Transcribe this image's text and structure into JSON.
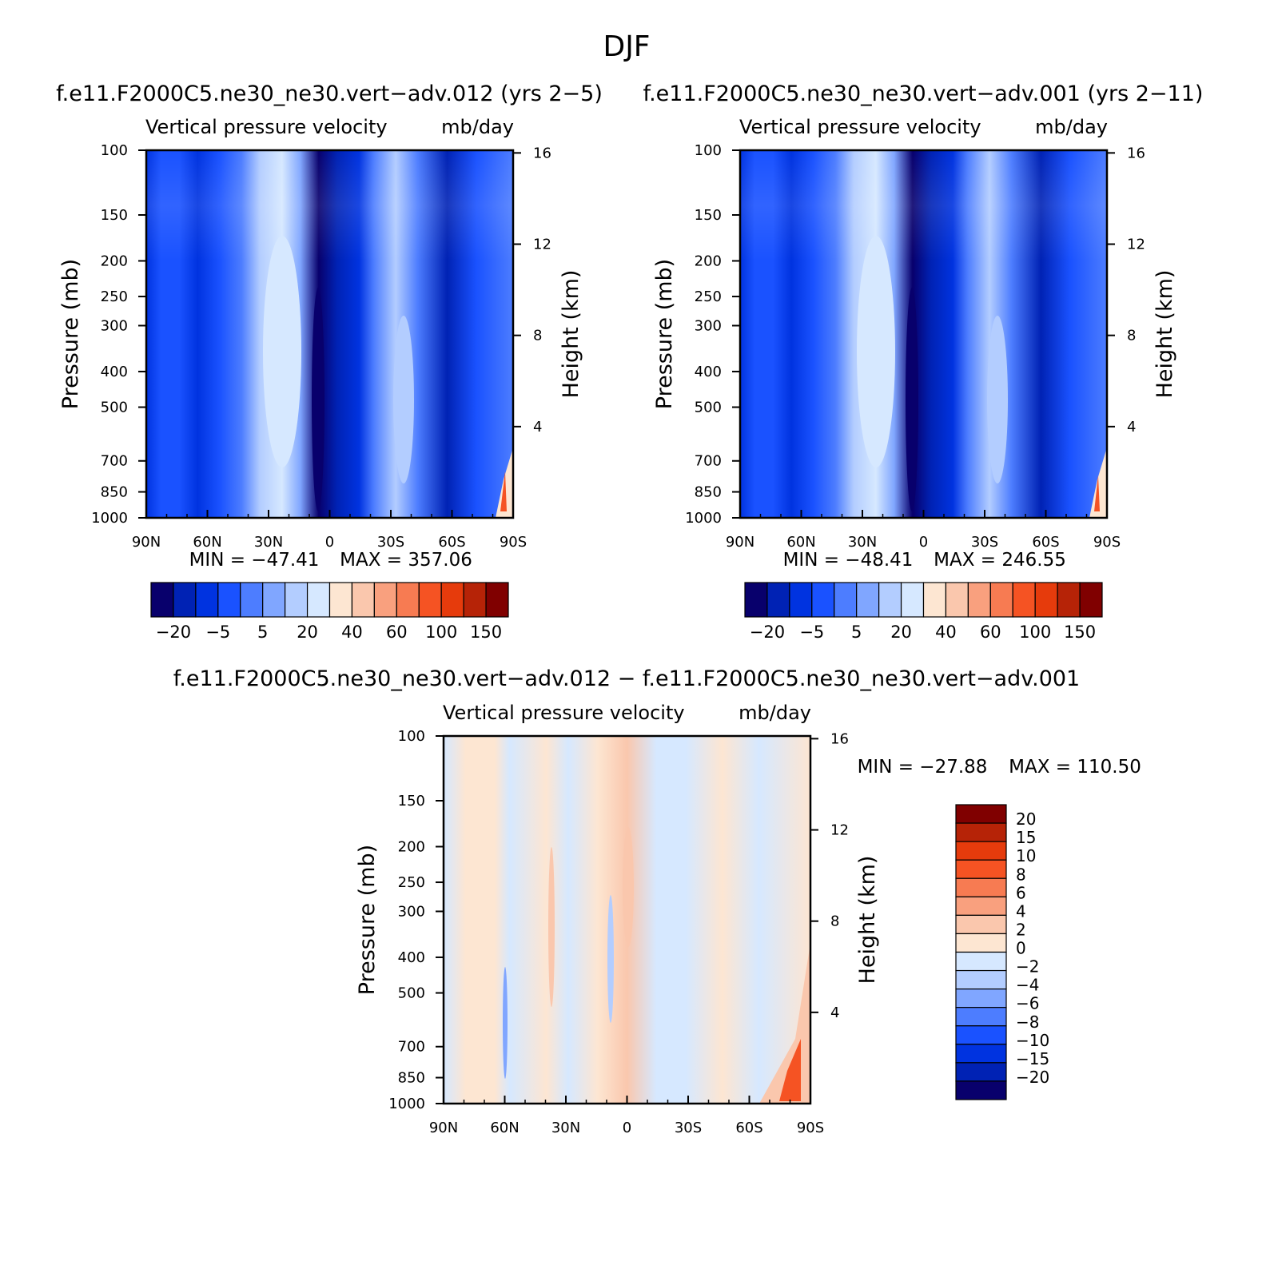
{
  "figure": {
    "title": "DJF",
    "subtitle_diff": "f.e11.F2000C5.ne30_ne30.vert−adv.012 − f.e11.F2000C5.ne30_ne30.vert−adv.001"
  },
  "chart_data": [
    {
      "type": "heatmap",
      "case": "f.e11.F2000C5.ne30_ne30.vert−adv.012 (yrs 2−5)",
      "title": "Vertical pressure velocity",
      "units": "mb/day",
      "xlabel": "",
      "ylabel": "Pressure (mb)",
      "ylabel_right": "Height (km)",
      "x_ticks": [
        "90N",
        "60N",
        "30N",
        "0",
        "30S",
        "60S",
        "90S"
      ],
      "y_ticks": [
        100,
        150,
        200,
        250,
        300,
        400,
        500,
        700,
        850,
        1000
      ],
      "height_ticks": [
        16,
        12,
        8,
        4
      ],
      "ylim": [
        1000,
        100
      ],
      "min_text": "MIN = −47.41",
      "max_text": "MAX = 357.06",
      "colorbar_levels": [
        -20,
        -10,
        -5,
        0,
        5,
        10,
        20,
        30,
        40,
        50,
        60,
        80,
        100,
        120,
        150
      ],
      "colorbar_labels": [
        "−20",
        "−5",
        "5",
        "20",
        "40",
        "60",
        "100",
        "150"
      ],
      "colorbar_orientation": "horizontal"
    },
    {
      "type": "heatmap",
      "case": "f.e11.F2000C5.ne30_ne30.vert−adv.001 (yrs 2−11)",
      "title": "Vertical pressure velocity",
      "units": "mb/day",
      "xlabel": "",
      "ylabel": "Pressure (mb)",
      "ylabel_right": "Height (km)",
      "x_ticks": [
        "90N",
        "60N",
        "30N",
        "0",
        "30S",
        "60S",
        "90S"
      ],
      "y_ticks": [
        100,
        150,
        200,
        250,
        300,
        400,
        500,
        700,
        850,
        1000
      ],
      "height_ticks": [
        16,
        12,
        8,
        4
      ],
      "ylim": [
        1000,
        100
      ],
      "min_text": "MIN = −48.41",
      "max_text": "MAX = 246.55",
      "colorbar_levels": [
        -20,
        -10,
        -5,
        0,
        5,
        10,
        20,
        30,
        40,
        50,
        60,
        80,
        100,
        120,
        150
      ],
      "colorbar_labels": [
        "−20",
        "−5",
        "5",
        "20",
        "40",
        "60",
        "100",
        "150"
      ],
      "colorbar_orientation": "horizontal"
    },
    {
      "type": "heatmap",
      "case": "difference",
      "title": "Vertical pressure velocity",
      "units": "mb/day",
      "xlabel": "",
      "ylabel": "Pressure (mb)",
      "ylabel_right": "Height (km)",
      "x_ticks": [
        "90N",
        "60N",
        "30N",
        "0",
        "30S",
        "60S",
        "90S"
      ],
      "y_ticks": [
        100,
        150,
        200,
        250,
        300,
        400,
        500,
        700,
        850,
        1000
      ],
      "height_ticks": [
        16,
        12,
        8,
        4
      ],
      "ylim": [
        1000,
        100
      ],
      "min_text": "MIN = −27.88",
      "max_text": "MAX = 110.50",
      "colorbar_levels": [
        -20,
        -15,
        -10,
        -8,
        -6,
        -4,
        -2,
        0,
        2,
        4,
        6,
        8,
        10,
        15,
        20
      ],
      "colorbar_labels": [
        "20",
        "15",
        "10",
        "8",
        "6",
        "4",
        "2",
        "0",
        "−2",
        "−4",
        "−6",
        "−8",
        "−10",
        "−15",
        "−20"
      ],
      "colorbar_orientation": "vertical"
    }
  ],
  "colors": {
    "palette": [
      "#08006c",
      "#0022b4",
      "#0033e0",
      "#1a52ff",
      "#4d7dff",
      "#80a6ff",
      "#b3cdff",
      "#d6e8ff",
      "#fde6d2",
      "#fac7ad",
      "#f9a07e",
      "#f77b52",
      "#f55323",
      "#e63b0c",
      "#b62307",
      "#800000"
    ]
  }
}
